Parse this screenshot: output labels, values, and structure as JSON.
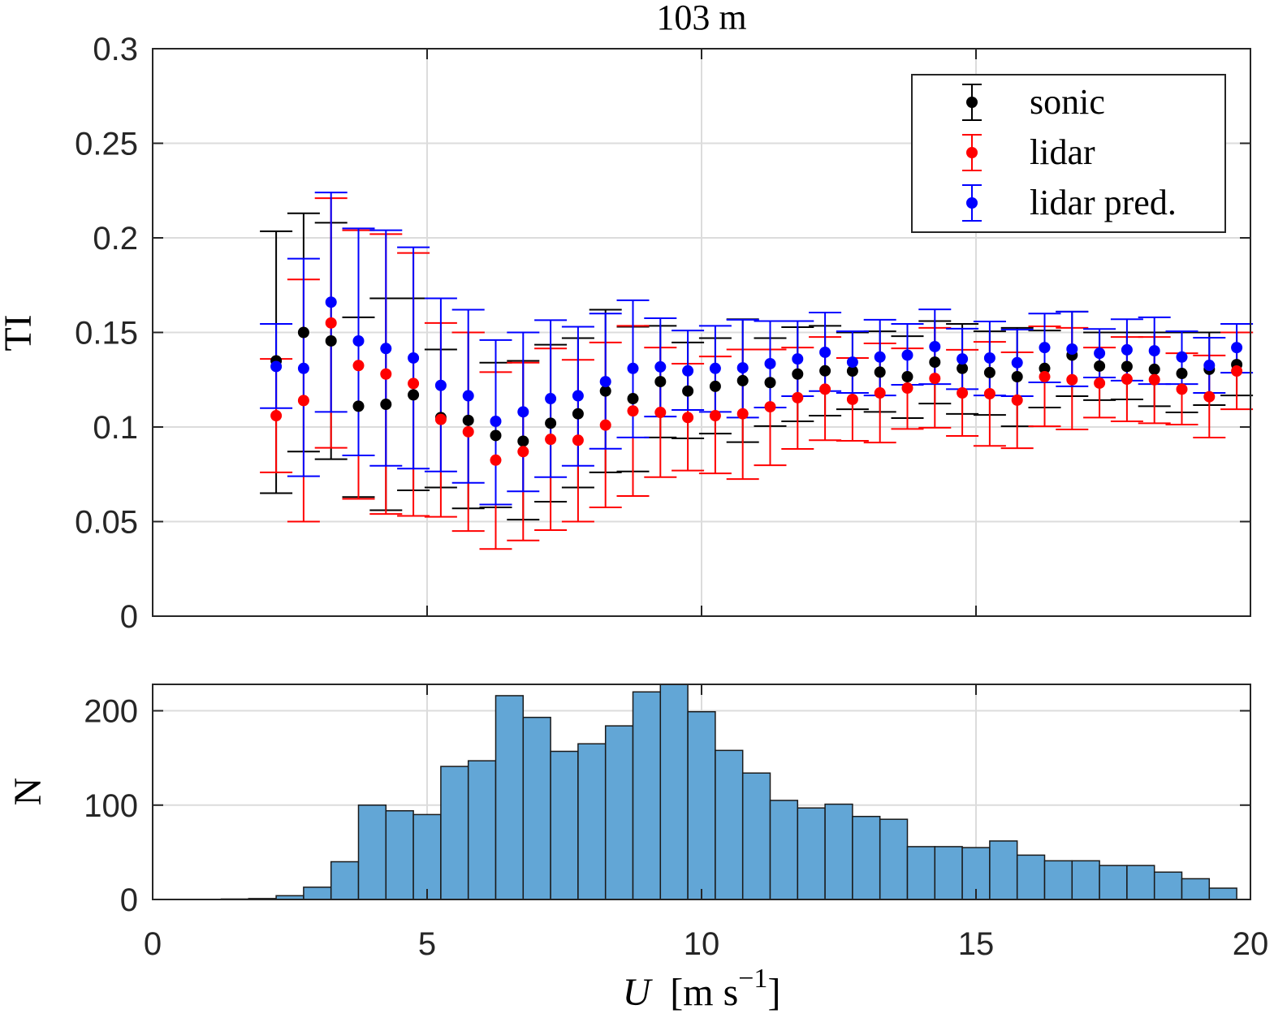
{
  "chart_data": [
    {
      "type": "scatter",
      "title": "103 m",
      "ylabel": "TI",
      "xlim": [
        0,
        20
      ],
      "ylim": [
        0,
        0.3
      ],
      "yticks": [
        "0",
        "0.05",
        "0.1",
        "0.15",
        "0.2",
        "0.25",
        "0.3"
      ],
      "ytick_values": [
        0,
        0.05,
        0.1,
        0.15,
        0.2,
        0.25,
        0.3
      ],
      "xtick_values": [
        0,
        5,
        10,
        15,
        20
      ],
      "grid": true,
      "legend_placement": "top-right",
      "error_bars": true,
      "x": [
        2.25,
        2.75,
        3.25,
        3.75,
        4.25,
        4.75,
        5.25,
        5.75,
        6.25,
        6.75,
        7.25,
        7.75,
        8.25,
        8.75,
        9.25,
        9.75,
        10.25,
        10.75,
        11.25,
        11.75,
        12.25,
        12.75,
        13.25,
        13.75,
        14.25,
        14.75,
        15.25,
        15.75,
        16.25,
        16.75,
        17.25,
        17.75,
        18.25,
        18.75,
        19.25,
        19.75
      ],
      "series": [
        {
          "name": "sonic",
          "color": "#000000",
          "mean": [
            0.135,
            0.15,
            0.1455,
            0.111,
            0.112,
            0.117,
            0.105,
            0.1035,
            0.0955,
            0.0925,
            0.102,
            0.107,
            0.119,
            0.115,
            0.124,
            0.119,
            0.1215,
            0.1245,
            0.1235,
            0.128,
            0.1297,
            0.1296,
            0.129,
            0.1266,
            0.1343,
            0.131,
            0.1288,
            0.1266,
            0.131,
            0.138,
            0.1322,
            0.132,
            0.1305,
            0.1283,
            0.1305,
            0.133
          ],
          "lower": [
            0.065,
            0.087,
            0.083,
            0.063,
            0.056,
            0.0665,
            0.068,
            0.057,
            0.0575,
            0.051,
            0.0605,
            0.068,
            0.076,
            0.0765,
            0.0945,
            0.094,
            0.0965,
            0.092,
            0.1005,
            0.103,
            0.106,
            0.1094,
            0.108,
            0.1047,
            0.1124,
            0.1069,
            0.1064,
            0.1004,
            0.1103,
            0.1163,
            0.1142,
            0.1146,
            0.111,
            0.1077,
            0.1116,
            0.1167
          ],
          "upper": [
            0.2035,
            0.213,
            0.208,
            0.158,
            0.168,
            0.168,
            0.141,
            0.15,
            0.134,
            0.135,
            0.1435,
            0.147,
            0.162,
            0.153,
            0.1535,
            0.1447,
            0.147,
            0.157,
            0.147,
            0.1528,
            0.1535,
            0.15,
            0.1506,
            0.148,
            0.156,
            0.1545,
            0.1506,
            0.1524,
            0.151,
            0.161,
            0.15,
            0.15,
            0.15,
            0.15,
            0.15,
            0.15
          ]
        },
        {
          "name": "lidar",
          "color": "#ff0000",
          "mean": [
            0.106,
            0.114,
            0.155,
            0.1325,
            0.128,
            0.123,
            0.104,
            0.0975,
            0.0825,
            0.087,
            0.0935,
            0.093,
            0.101,
            0.1085,
            0.1077,
            0.105,
            0.106,
            0.107,
            0.1107,
            0.1155,
            0.12,
            0.1146,
            0.118,
            0.1206,
            0.1257,
            0.118,
            0.1176,
            0.1142,
            0.1266,
            0.125,
            0.1232,
            0.1253,
            0.125,
            0.12,
            0.116,
            0.1296
          ],
          "lower": [
            0.076,
            0.05,
            0.089,
            0.062,
            0.054,
            0.053,
            0.0525,
            0.045,
            0.0355,
            0.04,
            0.0455,
            0.05,
            0.0575,
            0.0635,
            0.0735,
            0.077,
            0.0755,
            0.0725,
            0.0798,
            0.0884,
            0.093,
            0.0927,
            0.0918,
            0.099,
            0.0996,
            0.0953,
            0.09,
            0.0888,
            0.1004,
            0.0987,
            0.105,
            0.103,
            0.102,
            0.1013,
            0.0944,
            0.1094
          ],
          "upper": [
            0.136,
            0.178,
            0.221,
            0.204,
            0.202,
            0.192,
            0.155,
            0.15,
            0.129,
            0.134,
            0.1415,
            0.1355,
            0.1447,
            0.1535,
            0.142,
            0.1335,
            0.1373,
            0.141,
            0.141,
            0.142,
            0.1476,
            0.1365,
            0.1442,
            0.1416,
            0.1524,
            0.1408,
            0.145,
            0.1395,
            0.1532,
            0.1524,
            0.142,
            0.1476,
            0.1476,
            0.139,
            0.1378,
            0.15
          ]
        },
        {
          "name": "lidar pred.",
          "color": "#0000ff",
          "mean": [
            0.132,
            0.131,
            0.166,
            0.1455,
            0.1415,
            0.1365,
            0.122,
            0.1165,
            0.103,
            0.108,
            0.115,
            0.1165,
            0.124,
            0.131,
            0.1318,
            0.1297,
            0.131,
            0.1313,
            0.1335,
            0.136,
            0.1395,
            0.1343,
            0.137,
            0.138,
            0.1425,
            0.136,
            0.1365,
            0.134,
            0.142,
            0.1412,
            0.139,
            0.1408,
            0.1403,
            0.137,
            0.1326,
            0.142
          ],
          "lower": [
            0.11,
            0.074,
            0.108,
            0.085,
            0.0795,
            0.078,
            0.0765,
            0.0705,
            0.059,
            0.066,
            0.0735,
            0.0795,
            0.0885,
            0.0945,
            0.1055,
            0.109,
            0.108,
            0.105,
            0.1103,
            0.1163,
            0.119,
            0.118,
            0.1167,
            0.1223,
            0.1227,
            0.12,
            0.1167,
            0.1163,
            0.1236,
            0.1215,
            0.1262,
            0.1245,
            0.1227,
            0.1227,
            0.118,
            0.1287
          ],
          "upper": [
            0.1545,
            0.189,
            0.224,
            0.205,
            0.204,
            0.195,
            0.168,
            0.162,
            0.146,
            0.15,
            0.1565,
            0.153,
            0.16,
            0.167,
            0.1575,
            0.151,
            0.1535,
            0.1567,
            0.156,
            0.156,
            0.1605,
            0.1506,
            0.1567,
            0.1545,
            0.1622,
            0.152,
            0.1558,
            0.1515,
            0.16,
            0.161,
            0.1518,
            0.157,
            0.158,
            0.1506,
            0.1472,
            0.1545
          ]
        }
      ]
    },
    {
      "type": "bar",
      "subtype": "histogram",
      "xlabel_symbol": "U",
      "xlabel_unit_open": "[m s",
      "xlabel_exp": "−1",
      "xlabel_close": "]",
      "ylabel": "N",
      "xlim": [
        0,
        20
      ],
      "ylim": [
        0,
        228
      ],
      "xticks": [
        "0",
        "5",
        "10",
        "15",
        "20"
      ],
      "xtick_values": [
        0,
        5,
        10,
        15,
        20
      ],
      "yticks": [
        "0",
        "100",
        "200"
      ],
      "ytick_values": [
        0,
        100,
        200
      ],
      "grid": true,
      "bar_color": "#62a6d6",
      "bin_edges": [
        1.25,
        1.75,
        2.25,
        2.75,
        3.25,
        3.75,
        4.25,
        4.75,
        5.25,
        5.75,
        6.25,
        6.75,
        7.25,
        7.75,
        8.25,
        8.75,
        9.25,
        9.75,
        10.25,
        10.75,
        11.25,
        11.75,
        12.25,
        12.75,
        13.25,
        13.75,
        14.25,
        14.75,
        15.25,
        15.75,
        16.25,
        16.75,
        17.25,
        17.75,
        18.25,
        18.75,
        19.25,
        19.75
      ],
      "counts": [
        0.5,
        1,
        4,
        13,
        40,
        100,
        94,
        90,
        141,
        147,
        216,
        193,
        157,
        165,
        184,
        220,
        228,
        199,
        158,
        134,
        105,
        97,
        101,
        88,
        85,
        56,
        56,
        55,
        62,
        47,
        41,
        41,
        36,
        36,
        29,
        22,
        12
      ]
    }
  ]
}
